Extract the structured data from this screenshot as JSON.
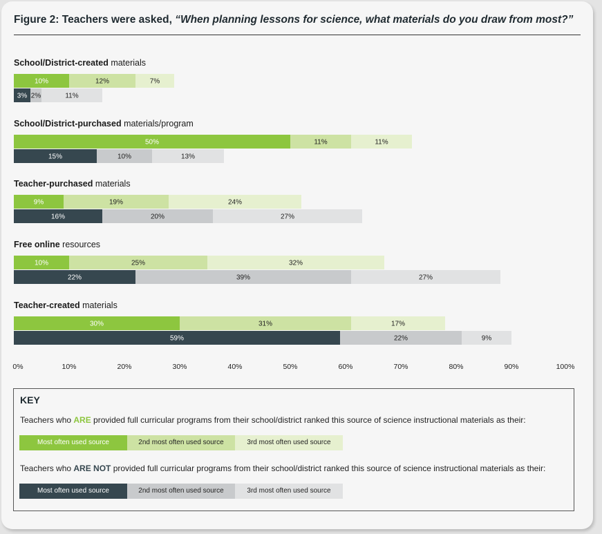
{
  "title": {
    "prefix": "Figure 2: Teachers were asked, ",
    "question": "“When planning lessons for science, what materials do you draw from most?”"
  },
  "colors": {
    "are_1": "#8dc63f",
    "are_2": "#cde2a3",
    "are_3": "#e6f0cf",
    "not_1": "#36474f",
    "not_2": "#c8cacc",
    "not_3": "#e1e2e3"
  },
  "chart_data": {
    "type": "bar",
    "orientation": "horizontal",
    "stacked": true,
    "xlim": [
      0,
      100
    ],
    "ticks": [
      "0%",
      "10%",
      "20%",
      "30%",
      "40%",
      "50%",
      "60%",
      "70%",
      "80%",
      "90%",
      "100%"
    ],
    "series_names": [
      "Most often used source",
      "2nd most often used source",
      "3rd most often used source"
    ],
    "groups": [
      "ARE provided full curricular programs",
      "ARE NOT provided full curricular programs"
    ],
    "categories": [
      {
        "bold": "School/District-created",
        "rest": " materials",
        "are": [
          10,
          12,
          7
        ],
        "not": [
          3,
          2,
          11
        ]
      },
      {
        "bold": "School/District-purchased",
        "rest": " materials/program",
        "are": [
          50,
          11,
          11
        ],
        "not": [
          15,
          10,
          13
        ]
      },
      {
        "bold": "Teacher-purchased",
        "rest": " materials",
        "are": [
          9,
          19,
          24
        ],
        "not": [
          16,
          20,
          27
        ]
      },
      {
        "bold": "Free online",
        "rest": " resources",
        "are": [
          10,
          25,
          32
        ],
        "not": [
          22,
          39,
          27
        ]
      },
      {
        "bold": "Teacher-created",
        "rest": " materials",
        "are": [
          30,
          31,
          17
        ],
        "not": [
          59,
          22,
          9
        ]
      }
    ]
  },
  "key": {
    "title": "KEY",
    "are_desc_pre": "Teachers who ",
    "are_word": "ARE",
    "are_desc_post": " provided full curricular programs from their school/district ranked this source of science instructional materials as their:",
    "not_desc_pre": "Teachers who ",
    "not_word": "ARE NOT",
    "not_desc_post": " provided full curricular programs from their school/district ranked this source of science instructional materials as their:",
    "labels": [
      "Most often used source",
      "2nd most often used source",
      "3rd most often used source"
    ]
  }
}
